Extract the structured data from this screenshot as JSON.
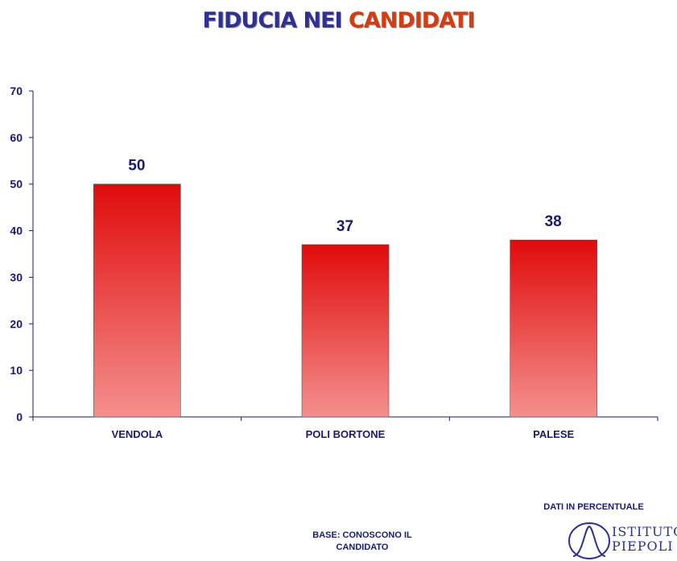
{
  "title_part1": "FIDUCIA NEI",
  "title_part2": "CANDIDATI",
  "colors": {
    "title_blue": "#2e3192",
    "title_red": "#d53c10",
    "bar_top": "#e00b0b",
    "bar_bottom": "#f4908e",
    "axis": "#1a1a6e"
  },
  "chart_data": {
    "type": "bar",
    "categories": [
      "VENDOLA",
      "POLI BORTONE",
      "PALESE"
    ],
    "values": [
      50,
      37,
      38
    ],
    "data_labels": [
      "50",
      "37",
      "38"
    ],
    "ylim": [
      0,
      70
    ],
    "yticks": [
      0,
      10,
      20,
      30,
      40,
      50,
      60,
      70
    ],
    "ytick_labels": [
      "0",
      "10",
      "20",
      "30",
      "40",
      "50",
      "60",
      "70"
    ],
    "grid": false
  },
  "base_note": [
    "BASE:  CONOSCONO  IL",
    "CANDIDATO"
  ],
  "dati_note": "DATI IN PERCENTUALE",
  "logo": {
    "line1": "ISTITUTO",
    "line2": "PIEPOLI"
  }
}
